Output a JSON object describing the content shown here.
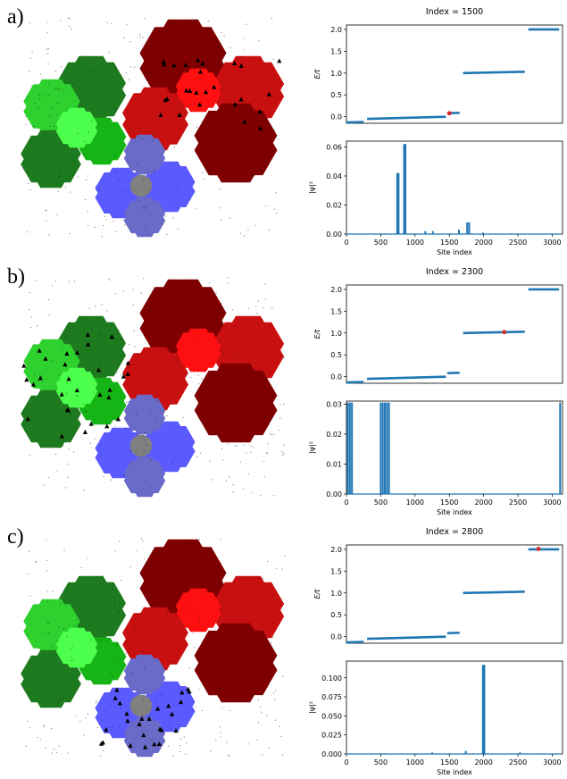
{
  "colors": {
    "series": "#1f77b4",
    "marker": "#d62728",
    "dark_green": "#1e7a1e",
    "mid_green": "#16b516",
    "light_green": "#2ed12e",
    "bright_green": "#4cff4c",
    "dark_red": "#7f0000",
    "mid_red": "#c81010",
    "bright_red": "#ff1010",
    "blue": "#5a5aff",
    "slate": "#6a6ac8",
    "gray": "#808080"
  },
  "panels": [
    {
      "label": "a)",
      "title": "Index = 1500",
      "highlight_region": "upper-right red clusters",
      "energy": {
        "ylabel": "E/t",
        "yticks": [
          "0.0",
          "0.5",
          "1.0",
          "1.5",
          "2.0"
        ],
        "ylim": [
          -0.15,
          2.1
        ],
        "marker": {
          "x": 1500,
          "y": 0.08
        }
      },
      "wave": {
        "ylabel": "|ψ|²",
        "yticks": [
          "0.00",
          "0.02",
          "0.04",
          "0.06"
        ],
        "ylim": [
          0,
          0.064
        ],
        "xlabel": "Site index",
        "peaks": [
          {
            "x": 740,
            "y": 0.042
          },
          {
            "x": 760,
            "y": 0.042
          },
          {
            "x": 840,
            "y": 0.062
          },
          {
            "x": 860,
            "y": 0.062
          },
          {
            "x": 1150,
            "y": 0.002
          },
          {
            "x": 1260,
            "y": 0.002
          },
          {
            "x": 1640,
            "y": 0.003
          },
          {
            "x": 1760,
            "y": 0.008
          },
          {
            "x": 1790,
            "y": 0.008
          },
          {
            "x": 1990,
            "y": 0.001
          }
        ]
      }
    },
    {
      "label": "b)",
      "title": "Index = 2300",
      "highlight_region": "left green clusters",
      "energy": {
        "ylabel": "E/t",
        "yticks": [
          "0.0",
          "0.5",
          "1.0",
          "1.5",
          "2.0"
        ],
        "ylim": [
          -0.15,
          2.1
        ],
        "marker": {
          "x": 2300,
          "y": 1.02
        }
      },
      "wave": {
        "ylabel": "|ψ|²",
        "yticks": [
          "0.00",
          "0.01",
          "0.02",
          "0.03"
        ],
        "ylim": [
          0,
          0.031
        ],
        "xlabel": "Site index",
        "peaks": [
          {
            "x": 20,
            "y": 0.0305
          },
          {
            "x": 50,
            "y": 0.0305
          },
          {
            "x": 80,
            "y": 0.0305
          },
          {
            "x": 500,
            "y": 0.0305
          },
          {
            "x": 530,
            "y": 0.0305
          },
          {
            "x": 560,
            "y": 0.0305
          },
          {
            "x": 590,
            "y": 0.0305
          },
          {
            "x": 620,
            "y": 0.0305
          },
          {
            "x": 3115,
            "y": 0.0305
          }
        ]
      }
    },
    {
      "label": "c)",
      "title": "Index = 2800",
      "highlight_region": "bottom blue clusters",
      "energy": {
        "ylabel": "E/t",
        "yticks": [
          "0.0",
          "0.5",
          "1.0",
          "1.5",
          "2.0"
        ],
        "ylim": [
          -0.15,
          2.1
        ],
        "marker": {
          "x": 2800,
          "y": 2.01
        }
      },
      "wave": {
        "ylabel": "|ψ|²",
        "yticks": [
          "0.000",
          "0.025",
          "0.050",
          "0.075",
          "0.100"
        ],
        "ylim": [
          0,
          0.122
        ],
        "xlabel": "Site index",
        "peaks": [
          {
            "x": 1250,
            "y": 0.002
          },
          {
            "x": 1740,
            "y": 0.004
          },
          {
            "x": 1990,
            "y": 0.117
          },
          {
            "x": 2010,
            "y": 0.117
          },
          {
            "x": 2530,
            "y": 0.002
          }
        ]
      }
    }
  ],
  "chart_data": [
    {
      "type": "line",
      "title": "Index = 1500",
      "xlabel": "",
      "ylabel": "E/t",
      "xlim": [
        0,
        3100
      ],
      "ylim": [
        -0.15,
        2.1
      ],
      "xticks": [
        0,
        500,
        1000,
        1500,
        2000,
        2500,
        3000
      ],
      "series": [
        {
          "name": "",
          "x": [
            0,
            250,
            300,
            1450,
            1480,
            1650,
            1700,
            2600,
            2650,
            3100
          ],
          "y": [
            -0.12,
            -0.11,
            -0.04,
            0.0,
            0.08,
            0.09,
            1.0,
            1.03,
            2.0,
            2.01
          ]
        }
      ],
      "marker": {
        "x": 1500,
        "y": 0.08
      }
    },
    {
      "type": "line",
      "title": "",
      "xlabel": "Site index",
      "ylabel": "|ψ|²",
      "xlim": [
        0,
        3100
      ],
      "ylim": [
        0,
        0.064
      ],
      "series": [
        {
          "name": "",
          "x": [
            740,
            760,
            840,
            860,
            1150,
            1260,
            1640,
            1760,
            1790
          ],
          "y": [
            0.042,
            0.042,
            0.062,
            0.062,
            0.002,
            0.002,
            0.003,
            0.008,
            0.008
          ]
        }
      ]
    },
    {
      "type": "line",
      "title": "Index = 2300",
      "xlabel": "",
      "ylabel": "E/t",
      "xlim": [
        0,
        3100
      ],
      "ylim": [
        -0.15,
        2.1
      ],
      "series": [
        {
          "name": "",
          "x": [
            0,
            250,
            300,
            1450,
            1480,
            1650,
            1700,
            2600,
            2650,
            3100
          ],
          "y": [
            -0.12,
            -0.11,
            -0.04,
            0.0,
            0.08,
            0.09,
            1.0,
            1.03,
            2.0,
            2.01
          ]
        }
      ],
      "marker": {
        "x": 2300,
        "y": 1.02
      }
    },
    {
      "type": "line",
      "title": "",
      "xlabel": "Site index",
      "ylabel": "|ψ|²",
      "xlim": [
        0,
        3100
      ],
      "ylim": [
        0,
        0.031
      ],
      "series": [
        {
          "name": "",
          "x": [
            20,
            50,
            80,
            500,
            530,
            560,
            590,
            620,
            3115
          ],
          "y": [
            0.0305,
            0.0305,
            0.0305,
            0.0305,
            0.0305,
            0.0305,
            0.0305,
            0.0305,
            0.0305
          ]
        }
      ]
    },
    {
      "type": "line",
      "title": "Index = 2800",
      "xlabel": "",
      "ylabel": "E/t",
      "xlim": [
        0,
        3100
      ],
      "ylim": [
        -0.15,
        2.1
      ],
      "series": [
        {
          "name": "",
          "x": [
            0,
            250,
            300,
            1450,
            1480,
            1650,
            1700,
            2600,
            2650,
            3100
          ],
          "y": [
            -0.12,
            -0.11,
            -0.04,
            0.0,
            0.08,
            0.09,
            1.0,
            1.03,
            2.0,
            2.01
          ]
        }
      ],
      "marker": {
        "x": 2800,
        "y": 2.01
      }
    },
    {
      "type": "line",
      "title": "",
      "xlabel": "Site index",
      "ylabel": "|ψ|²",
      "xlim": [
        0,
        3100
      ],
      "ylim": [
        0,
        0.122
      ],
      "series": [
        {
          "name": "",
          "x": [
            1250,
            1740,
            1990,
            2010,
            2530
          ],
          "y": [
            0.002,
            0.004,
            0.117,
            0.117,
            0.002
          ]
        }
      ]
    }
  ]
}
